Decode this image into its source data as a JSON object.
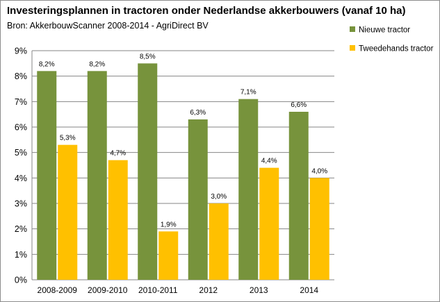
{
  "chart_data": {
    "type": "bar",
    "title": "Investeringsplannen in tractoren onder Nederlandse akkerbouwers (vanaf 10 ha)",
    "subtitle": "Bron: AkkerbouwScanner 2008-2014 - AgriDirect BV",
    "categories": [
      "2008-2009",
      "2009-2010",
      "2010-2011",
      "2012",
      "2013",
      "2014"
    ],
    "series": [
      {
        "name": "Nieuwe tractor",
        "color": "#77933c",
        "values": [
          8.2,
          8.2,
          8.5,
          6.3,
          7.1,
          6.6
        ],
        "labels": [
          "8,2%",
          "8,2%",
          "8,5%",
          "6,3%",
          "7,1%",
          "6,6%"
        ]
      },
      {
        "name": "Tweedehands tractor",
        "color": "#ffc000",
        "values": [
          5.3,
          4.7,
          1.9,
          3.0,
          4.4,
          4.0
        ],
        "labels": [
          "5,3%",
          "4,7%",
          "1,9%",
          "3,0%",
          "4,4%",
          "4,0%"
        ]
      }
    ],
    "ylim": [
      0,
      9
    ],
    "yticks": [
      "0%",
      "1%",
      "2%",
      "3%",
      "4%",
      "5%",
      "6%",
      "7%",
      "8%",
      "9%"
    ],
    "grid": true,
    "legend": "top-right"
  }
}
